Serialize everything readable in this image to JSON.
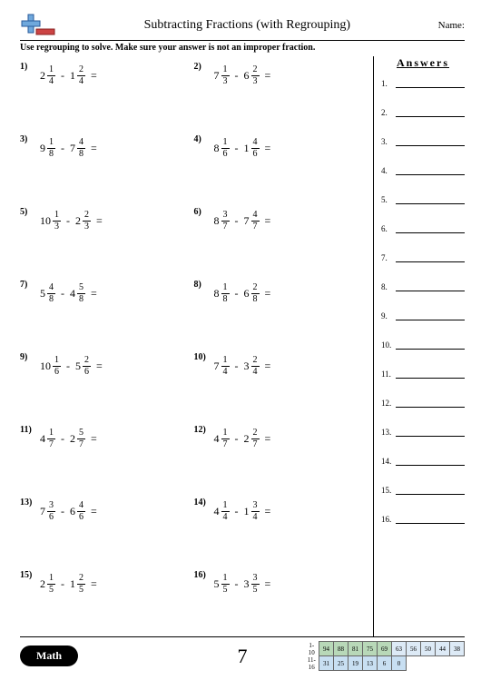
{
  "header": {
    "title": "Subtracting Fractions (with Regrouping)",
    "name_label": "Name:"
  },
  "instructions": "Use regrouping to solve. Make sure your answer is not an improper fraction.",
  "answers_heading": "Answers",
  "page_number": "7",
  "math_label": "Math",
  "problems": [
    {
      "n": "1)",
      "a": {
        "w": "2",
        "n": "1",
        "d": "4"
      },
      "b": {
        "w": "1",
        "n": "2",
        "d": "4"
      }
    },
    {
      "n": "2)",
      "a": {
        "w": "7",
        "n": "1",
        "d": "3"
      },
      "b": {
        "w": "6",
        "n": "2",
        "d": "3"
      }
    },
    {
      "n": "3)",
      "a": {
        "w": "9",
        "n": "1",
        "d": "8"
      },
      "b": {
        "w": "7",
        "n": "4",
        "d": "8"
      }
    },
    {
      "n": "4)",
      "a": {
        "w": "8",
        "n": "1",
        "d": "6"
      },
      "b": {
        "w": "1",
        "n": "4",
        "d": "6"
      }
    },
    {
      "n": "5)",
      "a": {
        "w": "10",
        "n": "1",
        "d": "3"
      },
      "b": {
        "w": "2",
        "n": "2",
        "d": "3"
      }
    },
    {
      "n": "6)",
      "a": {
        "w": "8",
        "n": "3",
        "d": "7"
      },
      "b": {
        "w": "7",
        "n": "4",
        "d": "7"
      }
    },
    {
      "n": "7)",
      "a": {
        "w": "5",
        "n": "4",
        "d": "8"
      },
      "b": {
        "w": "4",
        "n": "5",
        "d": "8"
      }
    },
    {
      "n": "8)",
      "a": {
        "w": "8",
        "n": "1",
        "d": "8"
      },
      "b": {
        "w": "6",
        "n": "2",
        "d": "8"
      }
    },
    {
      "n": "9)",
      "a": {
        "w": "10",
        "n": "1",
        "d": "6"
      },
      "b": {
        "w": "5",
        "n": "2",
        "d": "6"
      }
    },
    {
      "n": "10)",
      "a": {
        "w": "7",
        "n": "1",
        "d": "4"
      },
      "b": {
        "w": "3",
        "n": "2",
        "d": "4"
      }
    },
    {
      "n": "11)",
      "a": {
        "w": "4",
        "n": "1",
        "d": "7"
      },
      "b": {
        "w": "2",
        "n": "5",
        "d": "7"
      }
    },
    {
      "n": "12)",
      "a": {
        "w": "4",
        "n": "1",
        "d": "7"
      },
      "b": {
        "w": "2",
        "n": "2",
        "d": "7"
      }
    },
    {
      "n": "13)",
      "a": {
        "w": "7",
        "n": "3",
        "d": "6"
      },
      "b": {
        "w": "6",
        "n": "4",
        "d": "6"
      }
    },
    {
      "n": "14)",
      "a": {
        "w": "4",
        "n": "1",
        "d": "4"
      },
      "b": {
        "w": "1",
        "n": "3",
        "d": "4"
      }
    },
    {
      "n": "15)",
      "a": {
        "w": "2",
        "n": "1",
        "d": "5"
      },
      "b": {
        "w": "1",
        "n": "2",
        "d": "5"
      }
    },
    {
      "n": "16)",
      "a": {
        "w": "5",
        "n": "1",
        "d": "5"
      },
      "b": {
        "w": "3",
        "n": "3",
        "d": "5"
      }
    }
  ],
  "answer_lines": [
    "1.",
    "2.",
    "3.",
    "4.",
    "5.",
    "6.",
    "7.",
    "8.",
    "9.",
    "10.",
    "11.",
    "12.",
    "13.",
    "14.",
    "15.",
    "16."
  ],
  "score": {
    "row_labels": [
      "1-10",
      "11-16"
    ],
    "row1": [
      "94",
      "88",
      "81",
      "75",
      "69",
      "63",
      "56",
      "50",
      "44",
      "38"
    ],
    "row2": [
      "31",
      "25",
      "19",
      "13",
      "6",
      "0",
      "",
      "",
      "",
      ""
    ]
  }
}
